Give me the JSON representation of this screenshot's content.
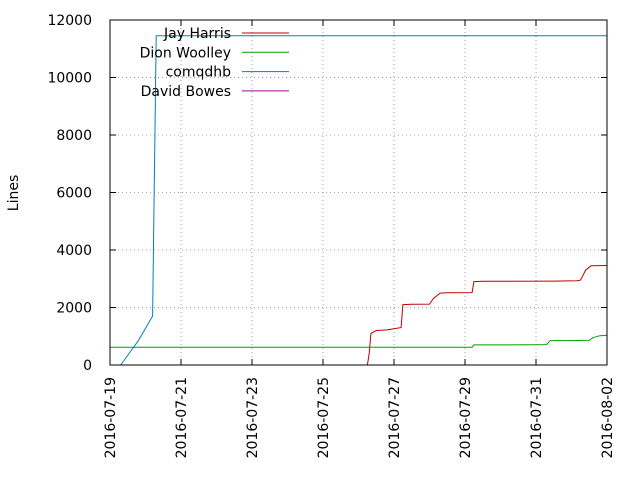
{
  "chart_data": {
    "type": "line",
    "title": "",
    "xlabel": "",
    "ylabel": "Lines",
    "ylim": [
      0,
      12000
    ],
    "xlim": [
      "2016-07-19",
      "2016-08-02"
    ],
    "x_ticks": [
      "2016-07-19",
      "2016-07-21",
      "2016-07-23",
      "2016-07-25",
      "2016-07-27",
      "2016-07-29",
      "2016-07-31",
      "2016-08-02"
    ],
    "y_ticks": [
      "0",
      "2000",
      "4000",
      "6000",
      "8000",
      "10000",
      "12000"
    ],
    "grid": true,
    "legend_position": "top-left",
    "series": [
      {
        "name": "Jay Harris",
        "color": "#c00000",
        "points": [
          [
            "2016-07-26 06:00",
            0
          ],
          [
            "2016-07-26 07:12",
            400
          ],
          [
            "2016-07-26 08:24",
            1100
          ],
          [
            "2016-07-26 12:00",
            1200
          ],
          [
            "2016-07-26 19:12",
            1220
          ],
          [
            "2016-07-27 00:00",
            1260
          ],
          [
            "2016-07-27 04:48",
            1300
          ],
          [
            "2016-07-27 06:00",
            2100
          ],
          [
            "2016-07-27 12:00",
            2110
          ],
          [
            "2016-07-28 00:00",
            2120
          ],
          [
            "2016-07-28 02:24",
            2300
          ],
          [
            "2016-07-28 04:48",
            2400
          ],
          [
            "2016-07-28 07:12",
            2500
          ],
          [
            "2016-07-28 12:00",
            2510
          ],
          [
            "2016-07-29 04:48",
            2520
          ],
          [
            "2016-07-29 06:00",
            2900
          ],
          [
            "2016-07-29 12:00",
            2910
          ],
          [
            "2016-07-30 00:00",
            2910
          ],
          [
            "2016-07-31 12:00",
            2920
          ],
          [
            "2016-08-01 03:36",
            2930
          ],
          [
            "2016-08-01 06:00",
            2950
          ],
          [
            "2016-08-01 09:36",
            3300
          ],
          [
            "2016-08-01 13:12",
            3450
          ],
          [
            "2016-08-02 00:00",
            3460
          ]
        ]
      },
      {
        "name": "Dion Woolley",
        "color": "#00a000",
        "points": [
          [
            "2016-07-19 00:00",
            620
          ],
          [
            "2016-07-29 04:48",
            620
          ],
          [
            "2016-07-29 06:00",
            700
          ],
          [
            "2016-07-30 00:00",
            700
          ],
          [
            "2016-07-31 07:12",
            710
          ],
          [
            "2016-07-31 09:36",
            850
          ],
          [
            "2016-08-01 00:00",
            850
          ],
          [
            "2016-08-01 12:00",
            860
          ],
          [
            "2016-08-01 14:24",
            950
          ],
          [
            "2016-08-01 19:12",
            1020
          ],
          [
            "2016-08-02 00:00",
            1030
          ]
        ]
      },
      {
        "name": "comqdhb",
        "color": "#0080c0",
        "points": [
          [
            "2016-07-19 07:12",
            0
          ],
          [
            "2016-07-19 19:12",
            850
          ],
          [
            "2016-07-20 04:48",
            1700
          ],
          [
            "2016-07-20 07:12",
            11450
          ],
          [
            "2016-08-02 00:00",
            11450
          ]
        ]
      },
      {
        "name": "David Bowes",
        "color": "#a000a0",
        "points": []
      }
    ]
  }
}
